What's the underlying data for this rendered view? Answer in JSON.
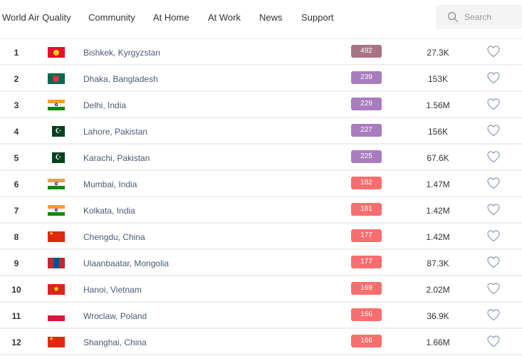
{
  "nav": {
    "brand": "World Air Quality",
    "items": [
      "Community",
      "At Home",
      "At Work",
      "News",
      "Support"
    ],
    "search_placeholder": "Search"
  },
  "colors": {
    "hazardous": "#a87383",
    "very_unhealthy": "#a97bbf",
    "unhealthy": "#f76e6e"
  },
  "rows": [
    {
      "rank": "1",
      "flag": "kg",
      "city": "Bishkek, Kyrgyzstan",
      "aqi": "492",
      "level": "hazardous",
      "followers": "27.3K"
    },
    {
      "rank": "2",
      "flag": "bd",
      "city": "Dhaka, Bangladesh",
      "aqi": "239",
      "level": "very_unhealthy",
      "followers": "153K"
    },
    {
      "rank": "3",
      "flag": "in",
      "city": "Delhi, India",
      "aqi": "229",
      "level": "very_unhealthy",
      "followers": "1.56M"
    },
    {
      "rank": "4",
      "flag": "pk",
      "city": "Lahore, Pakistan",
      "aqi": "227",
      "level": "very_unhealthy",
      "followers": "156K"
    },
    {
      "rank": "5",
      "flag": "pk",
      "city": "Karachi, Pakistan",
      "aqi": "225",
      "level": "very_unhealthy",
      "followers": "67.6K"
    },
    {
      "rank": "6",
      "flag": "in",
      "city": "Mumbai, India",
      "aqi": "182",
      "level": "unhealthy",
      "followers": "1.47M"
    },
    {
      "rank": "7",
      "flag": "in",
      "city": "Kolkata, India",
      "aqi": "181",
      "level": "unhealthy",
      "followers": "1.42M"
    },
    {
      "rank": "8",
      "flag": "cn",
      "city": "Chengdu, China",
      "aqi": "177",
      "level": "unhealthy",
      "followers": "1.42M"
    },
    {
      "rank": "9",
      "flag": "mn",
      "city": "Ulaanbaatar, Mongolia",
      "aqi": "177",
      "level": "unhealthy",
      "followers": "87.3K"
    },
    {
      "rank": "10",
      "flag": "vn",
      "city": "Hanoi, Vietnam",
      "aqi": "169",
      "level": "unhealthy",
      "followers": "2.02M"
    },
    {
      "rank": "11",
      "flag": "pl",
      "city": "Wroclaw, Poland",
      "aqi": "166",
      "level": "unhealthy",
      "followers": "36.9K"
    },
    {
      "rank": "12",
      "flag": "cn",
      "city": "Shanghai, China",
      "aqi": "166",
      "level": "unhealthy",
      "followers": "1.66M"
    }
  ]
}
